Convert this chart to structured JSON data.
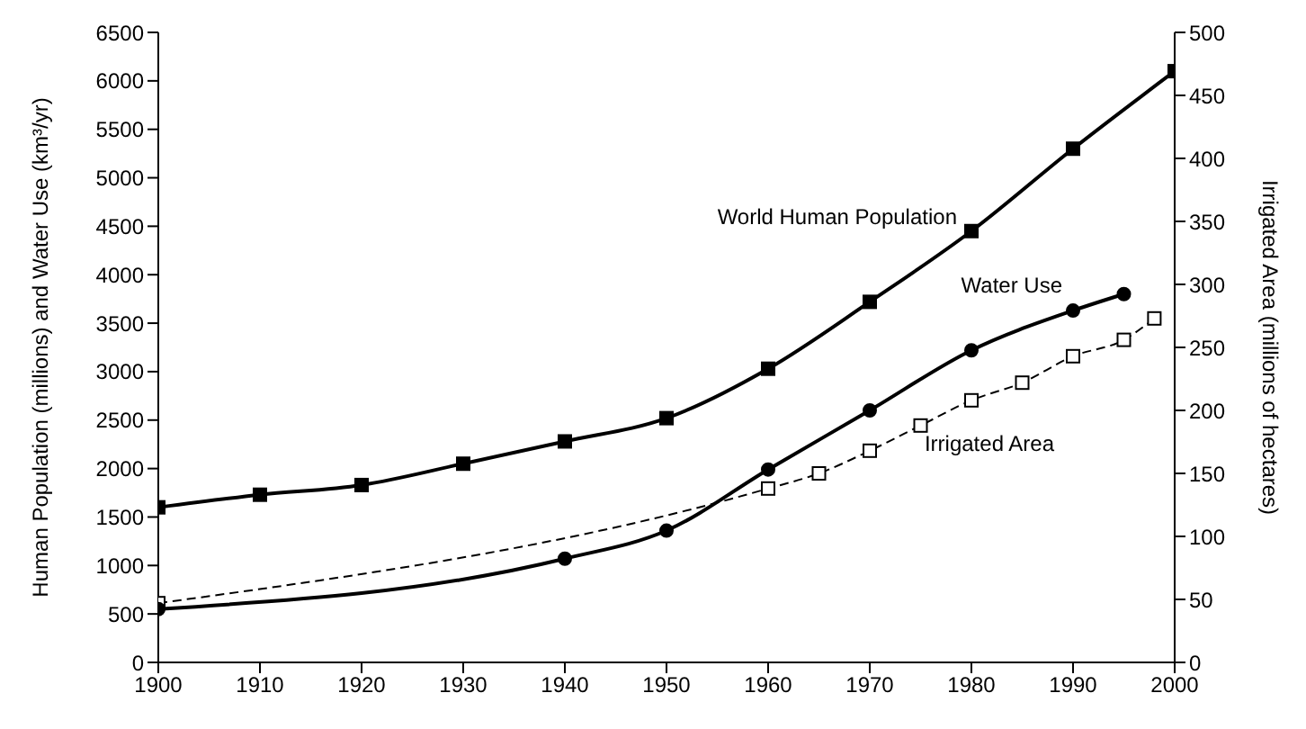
{
  "chart_data": {
    "type": "line",
    "xlabel": null,
    "ylabel": "Human Population (millions) and Water Use (km³/yr)",
    "y2label": "Irrigated Area (millions of hectares)",
    "xlim": [
      1900,
      2000
    ],
    "xticks": [
      1900,
      1910,
      1920,
      1930,
      1940,
      1950,
      1960,
      1970,
      1980,
      1990,
      2000
    ],
    "ylim": [
      0,
      6500
    ],
    "yticks": [
      0,
      500,
      1000,
      1500,
      2000,
      2500,
      3000,
      3500,
      4000,
      4500,
      5000,
      5500,
      6000,
      6500
    ],
    "y2lim": [
      0,
      500
    ],
    "y2ticks": [
      0,
      50,
      100,
      150,
      200,
      250,
      300,
      350,
      400,
      450,
      500
    ],
    "series": [
      {
        "name": "World Human Population",
        "color": "#000000",
        "marker": "square",
        "line_style": "solid",
        "x": [
          1900,
          1910,
          1920,
          1930,
          1940,
          1950,
          1960,
          1970,
          1980,
          1990,
          2000
        ],
        "values": [
          1600,
          1730,
          1830,
          2050,
          2280,
          2520,
          3030,
          3720,
          4450,
          5300,
          6100
        ]
      },
      {
        "name": "Water Use",
        "color": "#000000",
        "marker": "circle",
        "line_style": "solid",
        "x": [
          1900,
          1940,
          1950,
          1960,
          1970,
          1980,
          1990,
          1995
        ],
        "values": [
          550,
          1070,
          1360,
          1990,
          2600,
          3220,
          3630,
          3800
        ]
      },
      {
        "name": "Irrigated Area",
        "color": "#000000",
        "marker": "square",
        "line_style": "dashed",
        "axis": "y2",
        "x": [
          1900,
          1960,
          1965,
          1970,
          1975,
          1980,
          1985,
          1990,
          1995,
          1998
        ],
        "values": [
          47,
          138,
          150,
          168,
          188,
          208,
          222,
          243,
          256,
          273
        ]
      }
    ]
  }
}
